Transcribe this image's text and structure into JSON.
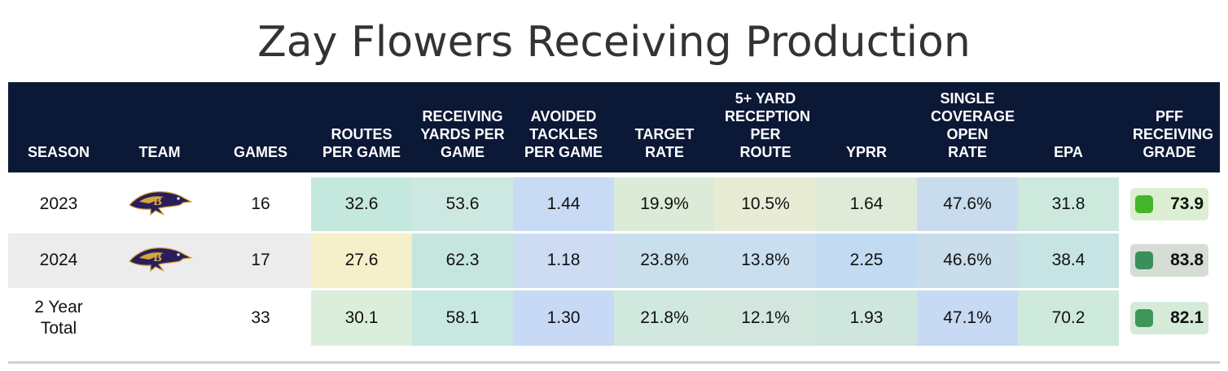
{
  "title": "Zay Flowers Receiving Production",
  "chart_data": {
    "type": "table",
    "title": "Zay Flowers Receiving Production",
    "columns": [
      "SEASON",
      "TEAM",
      "GAMES",
      "ROUTES PER GAME",
      "RECEIVING YARDS PER GAME",
      "AVOIDED TACKLES PER GAME",
      "TARGET RATE",
      "5+ YARD RECEPTION PER ROUTE",
      "YPRR",
      "SINGLE COVERAGE OPEN RATE",
      "EPA",
      "PFF RECEIVING GRADE"
    ],
    "rows": [
      {
        "season": "2023",
        "team_icon": "baltimore-ravens-logo",
        "games": "16",
        "stats": [
          "32.6",
          "53.6",
          "1.44",
          "19.9%",
          "10.5%",
          "1.64",
          "47.6%",
          "31.8"
        ],
        "stat_colors": [
          "#c4e8de",
          "#cde8e1",
          "#c8daf4",
          "#dcebd8",
          "#e8ecd5",
          "#dfebd8",
          "#c8dcee",
          "#cde9de"
        ],
        "grade": "73.9",
        "grade_swatch": "#44b52a",
        "grade_bg": "#ddefd2"
      },
      {
        "season": "2024",
        "team_icon": "baltimore-ravens-logo",
        "games": "17",
        "stats": [
          "27.6",
          "62.3",
          "1.18",
          "23.8%",
          "13.8%",
          "2.25",
          "46.6%",
          "38.4"
        ],
        "stat_colors": [
          "#f5efca",
          "#c4e6df",
          "#cddcf2",
          "#cadfec",
          "#c9dff0",
          "#c3dbf2",
          "#c9ddea",
          "#c5e4e3"
        ],
        "grade": "83.8",
        "grade_swatch": "#3b8f5a",
        "grade_bg": "#d5ddd5"
      },
      {
        "season": "2 Year Total",
        "team_icon": "",
        "games": "33",
        "stats": [
          "30.1",
          "58.1",
          "1.30",
          "21.8%",
          "12.1%",
          "1.93",
          "47.1%",
          "70.2"
        ],
        "stat_colors": [
          "#dbeedb",
          "#c7e8e0",
          "#c8d9f5",
          "#d1e8df",
          "#d2e6dd",
          "#cfe6df",
          "#c7d9f3",
          "#cdeadc"
        ],
        "grade": "82.1",
        "grade_swatch": "#3e9757",
        "grade_bg": "#d6ead8"
      }
    ]
  }
}
